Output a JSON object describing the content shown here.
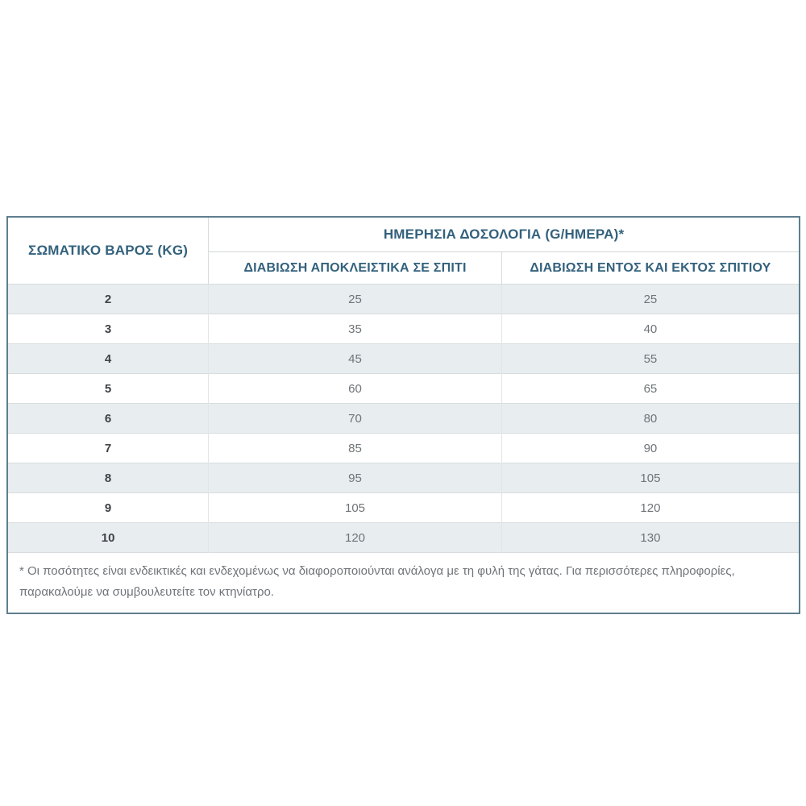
{
  "chart_data": {
    "type": "table",
    "title": "ΗΜΕΡΗΣΙΑ ΔΟΣΟΛΟΓΙΑ (G/ΗΜΕΡΑ)*",
    "columns": [
      "ΣΩΜΑΤΙΚΟ ΒΑΡΟΣ (KG)",
      "ΔΙΑΒΙΩΣΗ ΑΠΟΚΛΕΙΣΤΙΚΑ ΣΕ ΣΠΙΤΙ",
      "ΔΙΑΒΙΩΣΗ ΕΝΤΟΣ ΚΑΙ ΕΚΤΟΣ ΣΠΙΤΙΟΥ"
    ],
    "rows": [
      {
        "weight": "2",
        "indoor": "25",
        "outdoor": "25"
      },
      {
        "weight": "3",
        "indoor": "35",
        "outdoor": "40"
      },
      {
        "weight": "4",
        "indoor": "45",
        "outdoor": "55"
      },
      {
        "weight": "5",
        "indoor": "60",
        "outdoor": "65"
      },
      {
        "weight": "6",
        "indoor": "70",
        "outdoor": "80"
      },
      {
        "weight": "7",
        "indoor": "85",
        "outdoor": "90"
      },
      {
        "weight": "8",
        "indoor": "95",
        "outdoor": "105"
      },
      {
        "weight": "9",
        "indoor": "105",
        "outdoor": "120"
      },
      {
        "weight": "10",
        "indoor": "120",
        "outdoor": "130"
      }
    ],
    "footnote": "* Οι ποσότητες είναι ενδεικτικές και ενδεχομένως να διαφοροποιούνται ανάλογα με τη φυλή της γάτας. Για περισσότερες πληροφορίες, παρακαλούμε να συμβουλευτείτε τον κτηνίατρο.",
    "layout": "zebra-striped data table, 2-level column header, footnote row inside table frame"
  },
  "colors": {
    "header_text": "#33617c",
    "weight_text": "#3f4347",
    "value_text": "#6f7478",
    "row_stripe": "#e8edf0",
    "outer_border": "#5f7e8e",
    "inner_border": "#d8dcde",
    "background": "#ffffff"
  }
}
